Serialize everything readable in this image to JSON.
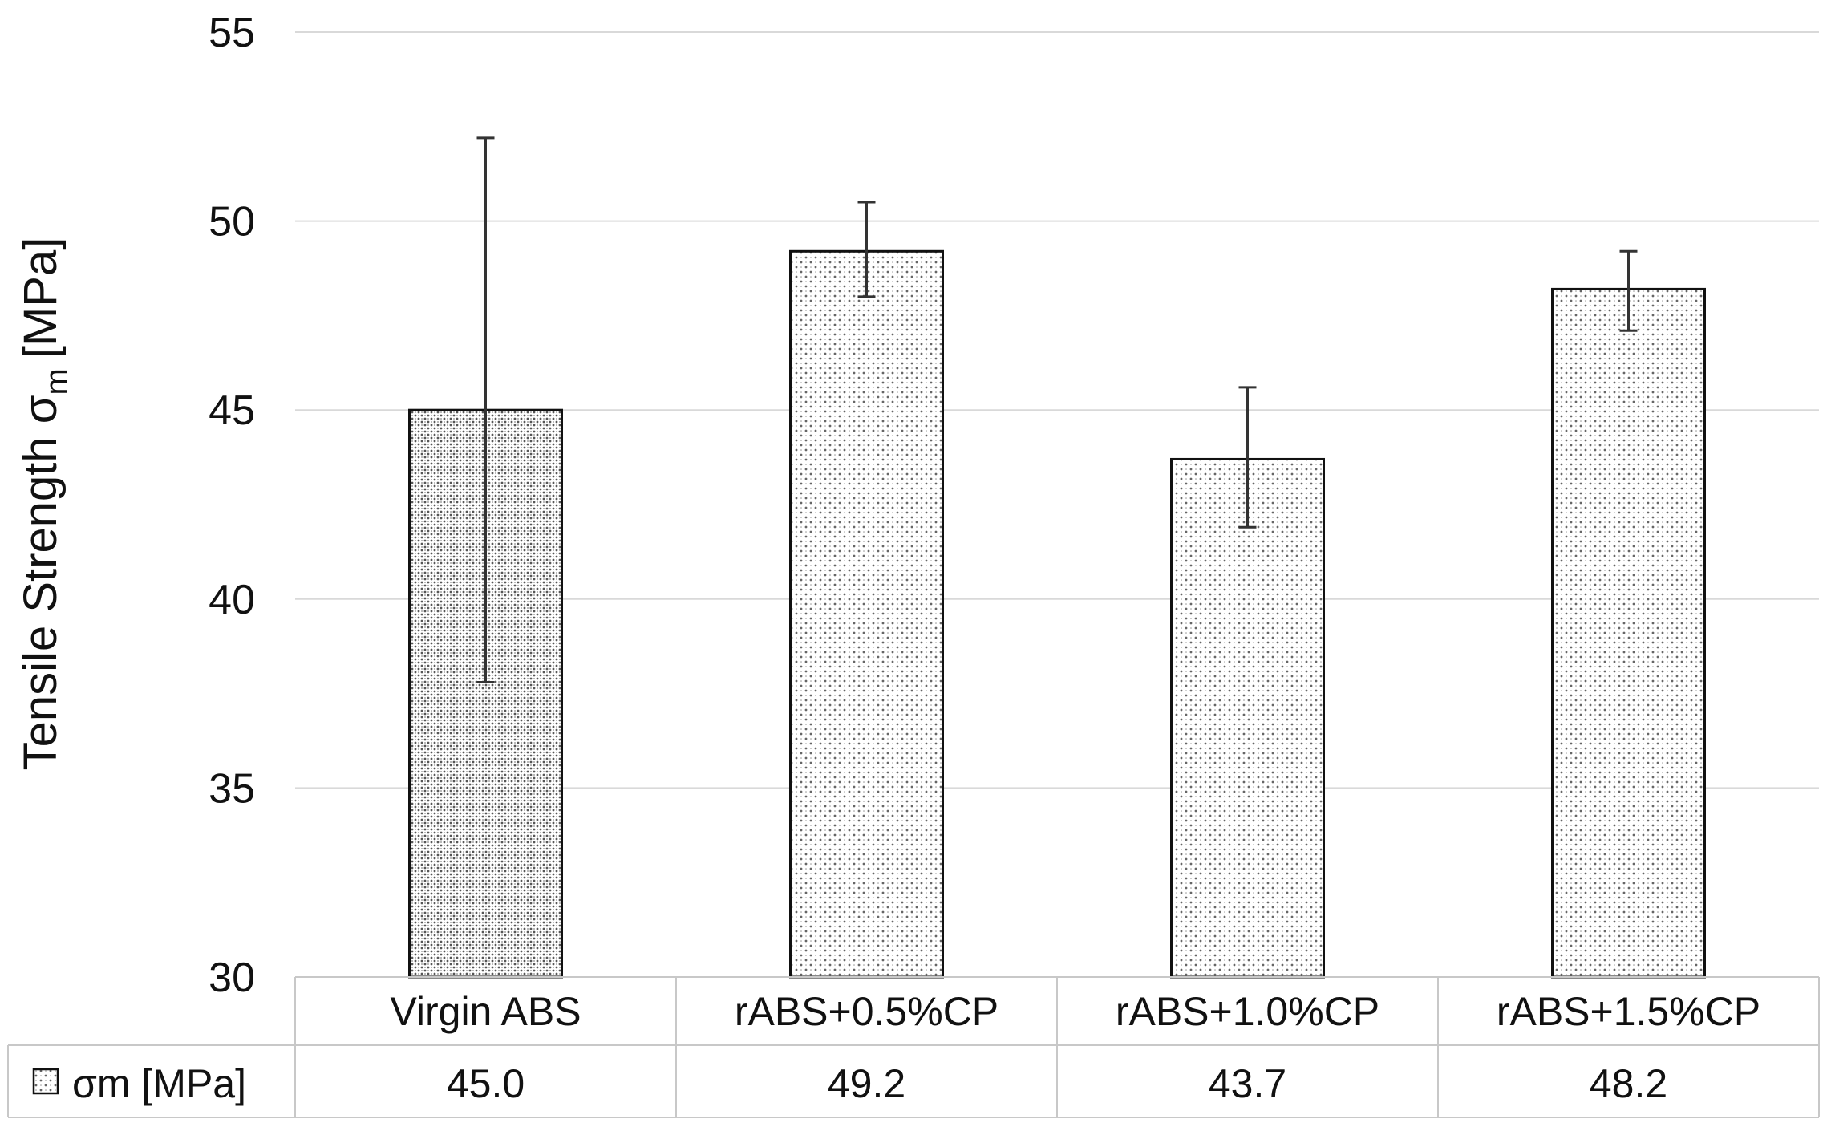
{
  "chart_data": {
    "type": "bar",
    "title": "",
    "xlabel": "",
    "ylabel": "Tensile Strength σ",
    "ylabel_subscript": "m",
    "ylabel_unit": "[MPa]",
    "ylim": [
      30,
      55
    ],
    "yticks": [
      "30",
      "35",
      "40",
      "45",
      "50",
      "55"
    ],
    "grid": true,
    "categories": [
      "Virgin ABS",
      "rABS+0.5%CP",
      "rABS+1.0%CP",
      "rABS+1.5%CP"
    ],
    "series": [
      {
        "name": "σm [MPa]",
        "values": [
          45.0,
          49.2,
          43.7,
          48.2
        ],
        "value_labels": [
          "45.0",
          "49.2",
          "43.7",
          "48.2"
        ],
        "error_high": [
          52.2,
          50.5,
          45.6,
          49.2
        ],
        "error_low": [
          37.8,
          48.0,
          41.9,
          47.1
        ]
      }
    ],
    "data_table": true,
    "colors": {
      "bar_border": "#111111",
      "dot_dark": "#555555",
      "dot_light": "#777777",
      "grid": "#d9d9d9"
    }
  }
}
